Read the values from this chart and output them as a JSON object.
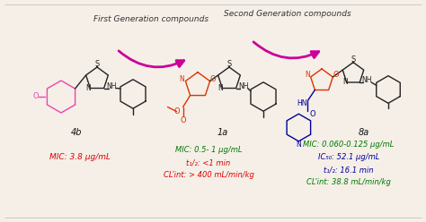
{
  "bg_color": "#f5efe8",
  "border_color": "#cccccc",
  "arrow_color": "#cc0099",
  "arrow_label_color": "#333333",
  "arrow1_label": "First Generation compounds",
  "arrow2_label": "Second Generation compounds",
  "arrow_label_fontsize": 6.5,
  "compound_labels": [
    "4b",
    "1a",
    "8a"
  ],
  "compound_label_fontsize": 7,
  "compound_label_color": "#111111",
  "panel1_text": "MIC: 3.8 μg/mL",
  "panel1_color": "#dd0000",
  "panel2_lines": [
    "MIC: 0.5- 1 μg/mL",
    "t₁/₂: <1 min",
    "CL’int: > 400 mL/min/kg"
  ],
  "panel2_colors": [
    "#007700",
    "#dd0000",
    "#dd0000"
  ],
  "panel3_lines": [
    "MIC: 0.060-0.125 μg/mL",
    "IC₅₀: 52.1 μg/mL",
    "t₁/₂: 16.1 min",
    "CL’int: 38.8 mL/min/kg"
  ],
  "panel3_colors": [
    "#007700",
    "#000099",
    "#000099",
    "#007700"
  ],
  "pink_color": "#ee44aa",
  "red_color": "#dd3300",
  "dark_color": "#222222",
  "blue_color": "#000099"
}
